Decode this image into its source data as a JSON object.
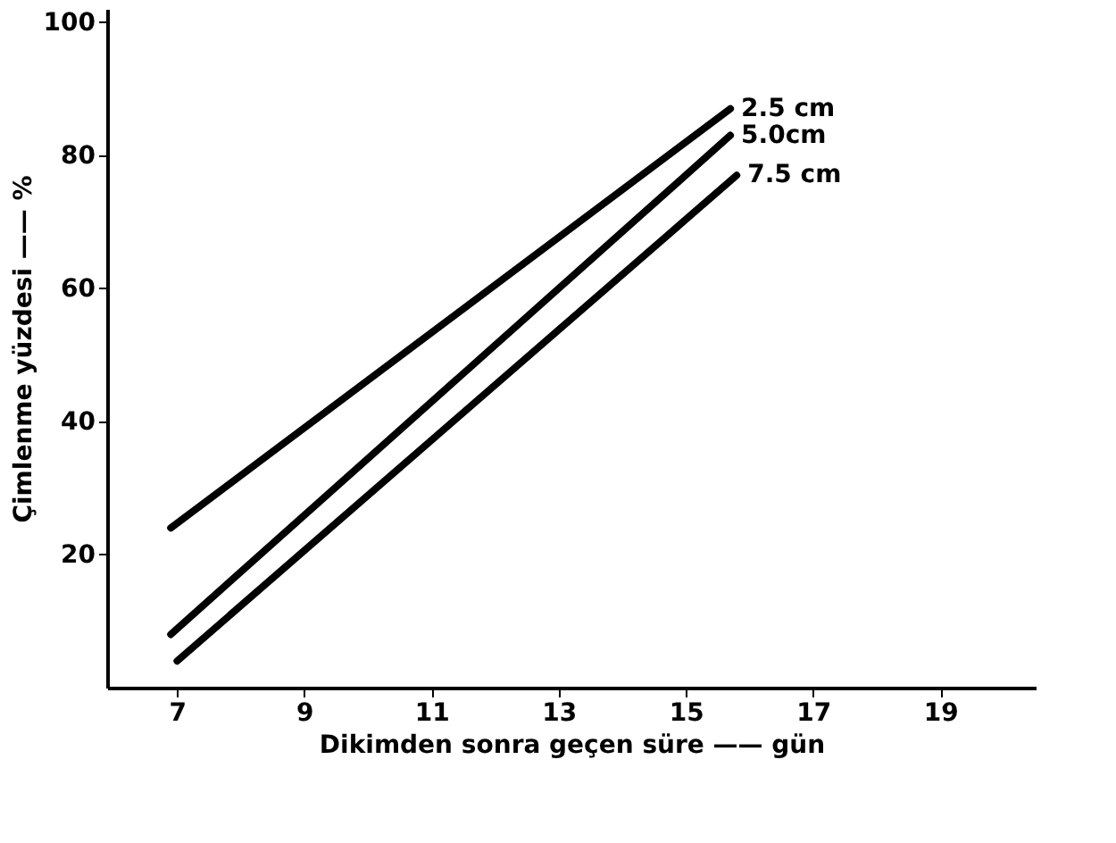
{
  "chart_data": {
    "type": "line",
    "xlabel": "Dikimden sonra geçen süre —— gün",
    "ylabel": "Çimlenme yüzdesi —— %",
    "xlim": [
      5.9,
      20.5
    ],
    "xticks": [
      7,
      9,
      11,
      13,
      15,
      17,
      19
    ],
    "ylim": [
      0,
      102
    ],
    "yticks": [
      20,
      40,
      60,
      80,
      100
    ],
    "grid": false,
    "marker": "none",
    "line_style": "solid",
    "series": [
      {
        "name": "2.5 cm",
        "color": "#000000",
        "x": [
          6.9,
          15.7
        ],
        "values": [
          24,
          87
        ]
      },
      {
        "name": "5.0cm",
        "color": "#000000",
        "x": [
          6.9,
          15.7
        ],
        "values": [
          8,
          83
        ]
      },
      {
        "name": "7.5 cm",
        "color": "#000000",
        "x": [
          7.0,
          15.8
        ],
        "values": [
          4,
          77
        ]
      }
    ]
  }
}
